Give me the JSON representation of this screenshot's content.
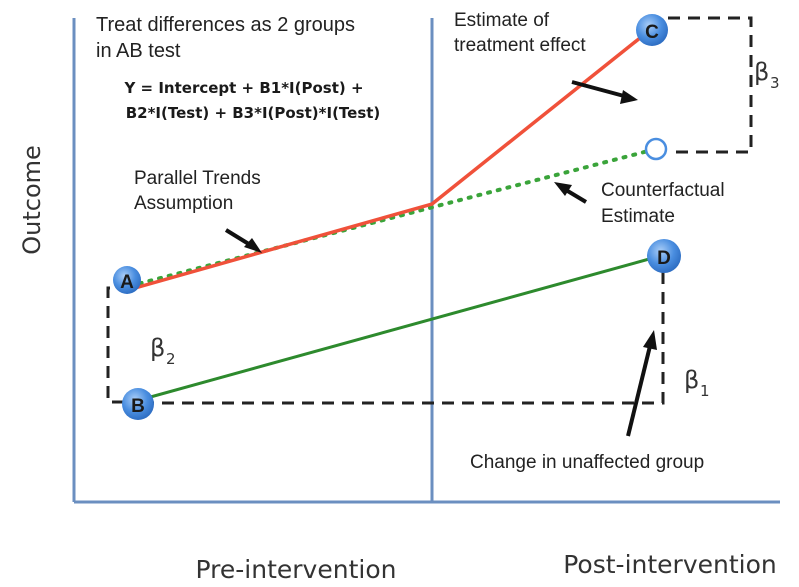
{
  "axes": {
    "y_label": "Outcome",
    "x_label_pre": "Pre-intervention",
    "x_label_post": "Post-intervention"
  },
  "annotations": {
    "title_line1": "Treat differences as 2 groups",
    "title_line2": "in AB test",
    "formula_line1": "Y = Intercept + B1*I(Post) +",
    "formula_line2": "B2*I(Test) + B3*I(Post)*I(Test)",
    "parallel_line1": "Parallel Trends",
    "parallel_line2": "Assumption",
    "estimate_line1": "Estimate of",
    "estimate_line2": "treatment effect",
    "counterfactual_line1": "Counterfactual",
    "counterfactual_line2": "Estimate",
    "change_unaffected": "Change in unaffected group"
  },
  "points": {
    "A": "A",
    "B": "B",
    "C": "C",
    "D": "D"
  },
  "betas": {
    "b1": "β",
    "b1_sub": "1",
    "b2": "β",
    "b2_sub": "2",
    "b3": "β",
    "b3_sub": "3"
  },
  "colors": {
    "axis": "#6b8fc0",
    "treatment": "#f0513a",
    "control": "#2d8a2d",
    "counterfactual": "#3aa43a",
    "point_fill": "#4a8ee0",
    "dashed": "#222222"
  }
}
